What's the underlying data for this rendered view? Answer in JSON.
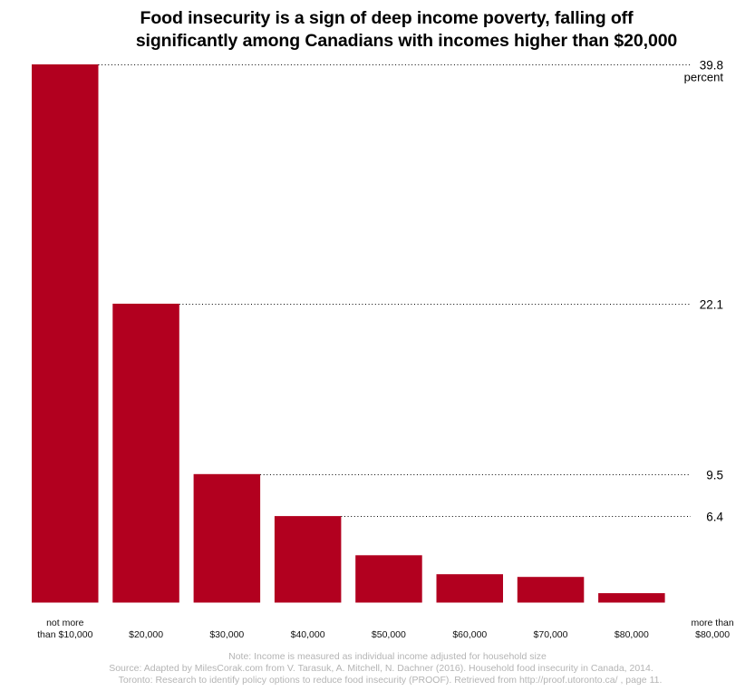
{
  "colors": {
    "bar": "#b2001f",
    "reference_line": "#000000",
    "footnote": "#b4b4b4"
  },
  "chart_data": {
    "type": "bar",
    "title": [
      "Food insecurity is a sign of deep income poverty, falling off",
      "significantly among Canadians with incomes higher than $20,000"
    ],
    "xlabel": "",
    "ylabel": "percent",
    "categories": [
      [
        "not more",
        "than $10,000"
      ],
      [
        "$20,000"
      ],
      [
        "$30,000"
      ],
      [
        "$40,000"
      ],
      [
        "$50,000"
      ],
      [
        "$60,000"
      ],
      [
        "$70,000"
      ],
      [
        "$80,000"
      ],
      [
        "more than",
        "$80,000"
      ]
    ],
    "values": [
      39.8,
      22.1,
      9.5,
      6.4,
      3.5,
      2.1,
      1.9,
      0.7,
      null
    ],
    "ylim": [
      0,
      39.8
    ],
    "grid": false,
    "legend": "none",
    "reference_lines": [
      {
        "category_index": 0,
        "value": 39.8,
        "label": "39.8",
        "unit": "percent"
      },
      {
        "category_index": 1,
        "value": 22.1,
        "label": "22.1"
      },
      {
        "category_index": 2,
        "value": 9.5,
        "label": "9.5"
      },
      {
        "category_index": 3,
        "value": 6.4,
        "label": "6.4"
      }
    ]
  },
  "footnotes": [
    "Note: Income is measured as individual income adjusted for household size",
    "Source: Adapted by MilesCorak.com from V. Tarasuk, A. Mitchell, N. Dachner (2016). Household food insecurity in Canada, 2014.",
    "Toronto: Research to identify policy options to reduce food insecurity (PROOF). Retrieved from http://proof.utoronto.ca/ , page 11."
  ]
}
